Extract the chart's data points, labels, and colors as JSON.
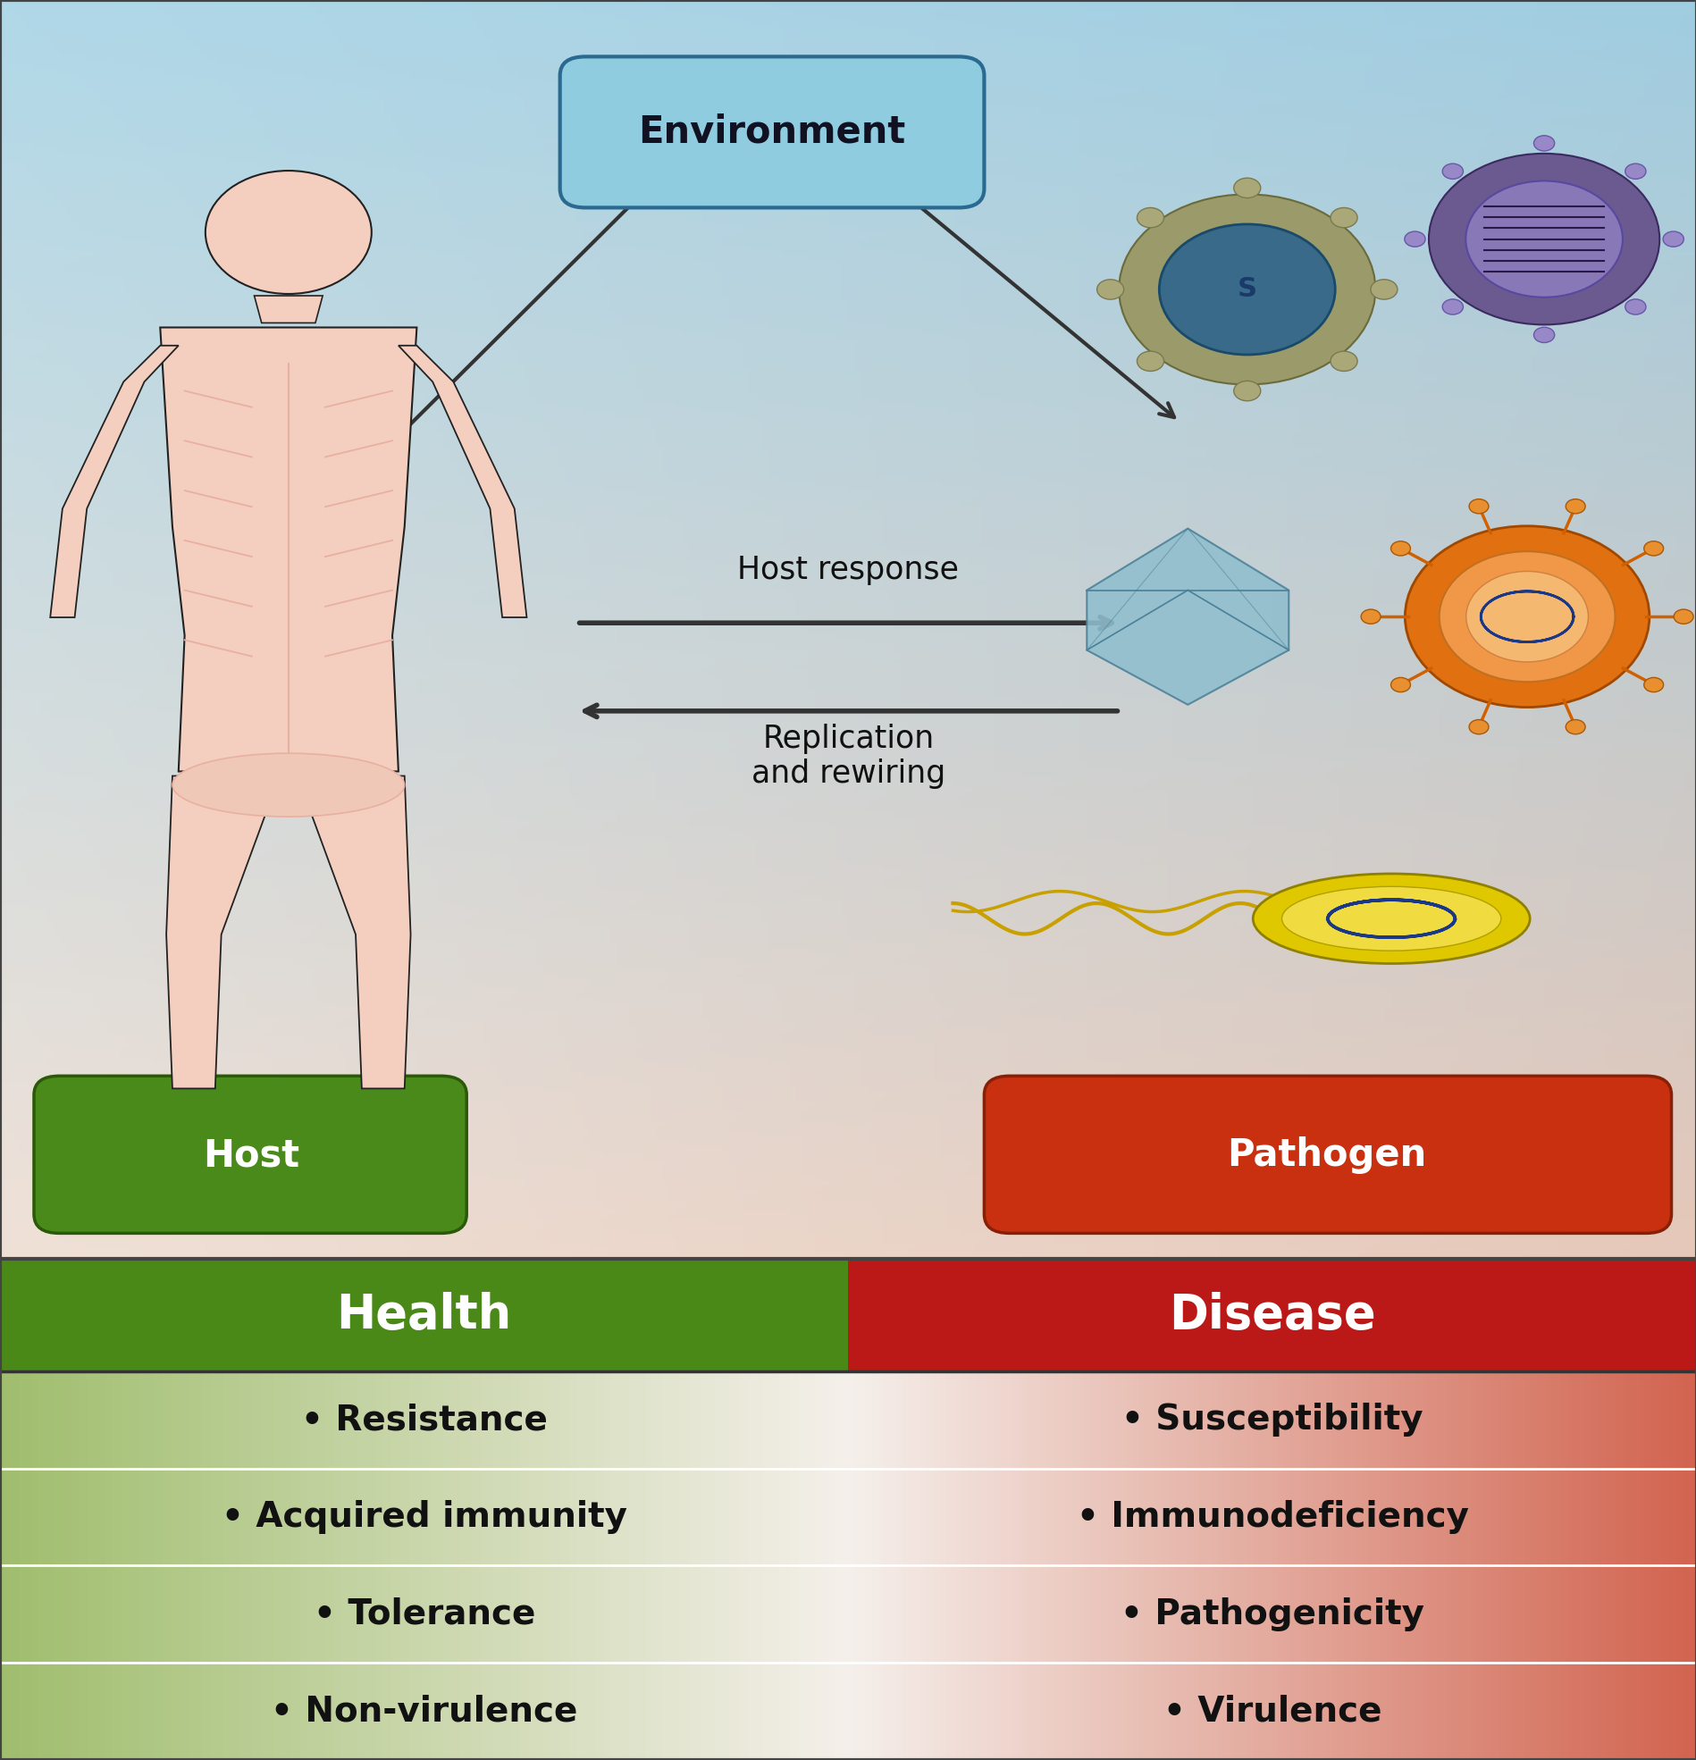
{
  "environment_label": "Environment",
  "host_label": "Host",
  "pathogen_label": "Pathogen",
  "host_response_label": "Host response",
  "replication_label": "Replication\nand rewiring",
  "health_label": "Health",
  "disease_label": "Disease",
  "left_items": [
    "Resistance",
    "Acquired immunity",
    "Tolerance",
    "Non-virulence"
  ],
  "right_items": [
    "Susceptibility",
    "Immunodeficiency",
    "Pathogenicity",
    "Virulence"
  ]
}
